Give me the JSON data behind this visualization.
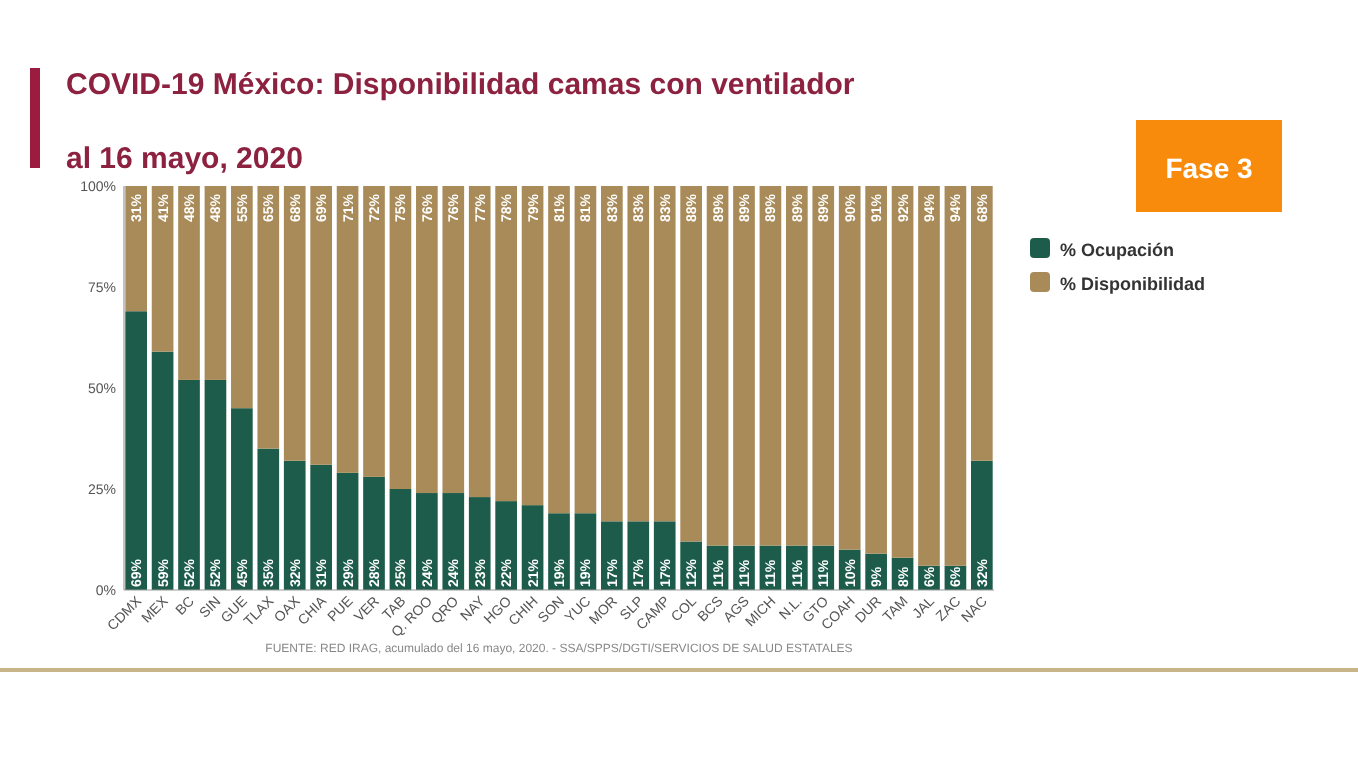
{
  "chart_data": {
    "type": "bar",
    "stacked": true,
    "title": "COVID-19 México: Disponibilidad camas con ventilador",
    "subtitle": "al 16 mayo, 2020",
    "categories": [
      "CDMX",
      "MEX",
      "BC",
      "SIN",
      "GUE",
      "TLAX",
      "OAX",
      "CHIA",
      "PUE",
      "VER",
      "TAB",
      "Q. ROO",
      "QRO",
      "NAY",
      "HGO",
      "CHIH",
      "SON",
      "YUC",
      "MOR",
      "SLP",
      "CAMP",
      "COL",
      "BCS",
      "AGS",
      "MICH",
      "N.L.",
      "GTO",
      "COAH",
      "DUR",
      "TAM",
      "JAL",
      "ZAC",
      "NAC"
    ],
    "series": [
      {
        "name": "% Ocupación",
        "color": "#1d5c4a",
        "values": [
          69,
          59,
          52,
          52,
          45,
          35,
          32,
          31,
          29,
          28,
          25,
          24,
          24,
          23,
          22,
          21,
          19,
          19,
          17,
          17,
          17,
          12,
          11,
          11,
          11,
          11,
          11,
          10,
          9,
          8,
          6,
          6,
          32
        ],
        "value_labels": [
          "69%",
          "59%",
          "52%",
          "52%",
          "45%",
          "35%",
          "32%",
          "31%",
          "29%",
          "28%",
          "25%",
          "24%",
          "24%",
          "23%",
          "22%",
          "21%",
          "19%",
          "19%",
          "17%",
          "17%",
          "17%",
          "12%",
          "11%",
          "11%",
          "11%",
          "11%",
          "11%",
          "10%",
          "9%",
          "8%",
          "6%",
          "6%",
          "32%"
        ]
      },
      {
        "name": "% Disponibilidad",
        "color": "#a98b5a",
        "values": [
          31,
          41,
          48,
          48,
          55,
          65,
          68,
          69,
          71,
          72,
          75,
          76,
          76,
          77,
          78,
          79,
          81,
          81,
          83,
          83,
          83,
          88,
          89,
          89,
          89,
          89,
          89,
          90,
          91,
          92,
          94,
          94,
          68
        ],
        "value_labels": [
          "31%",
          "41%",
          "48%",
          "48%",
          "55%",
          "65%",
          "68%",
          "69%",
          "71%",
          "72%",
          "75%",
          "76%",
          "76%",
          "77%",
          "78%",
          "79%",
          "81%",
          "81%",
          "83%",
          "83%",
          "83%",
          "88%",
          "89%",
          "89%",
          "89%",
          "89%",
          "89%",
          "90%",
          "91%",
          "92%",
          "94%",
          "94%",
          "68%"
        ]
      }
    ],
    "ylim": [
      0,
      100
    ],
    "yticks": [
      {
        "value": 0,
        "label": "0%"
      },
      {
        "value": 25,
        "label": "25%"
      },
      {
        "value": 50,
        "label": "50%"
      },
      {
        "value": 75,
        "label": "75%"
      },
      {
        "value": 100,
        "label": "100%"
      }
    ],
    "legend": "right",
    "annotations": [
      "Fase 3",
      "FUENTE: RED IRAG, acumulado del 16 mayo, 2020. - SSA/SPPS/DGTI/SERVICIOS DE SALUD ESTATALES"
    ]
  }
}
